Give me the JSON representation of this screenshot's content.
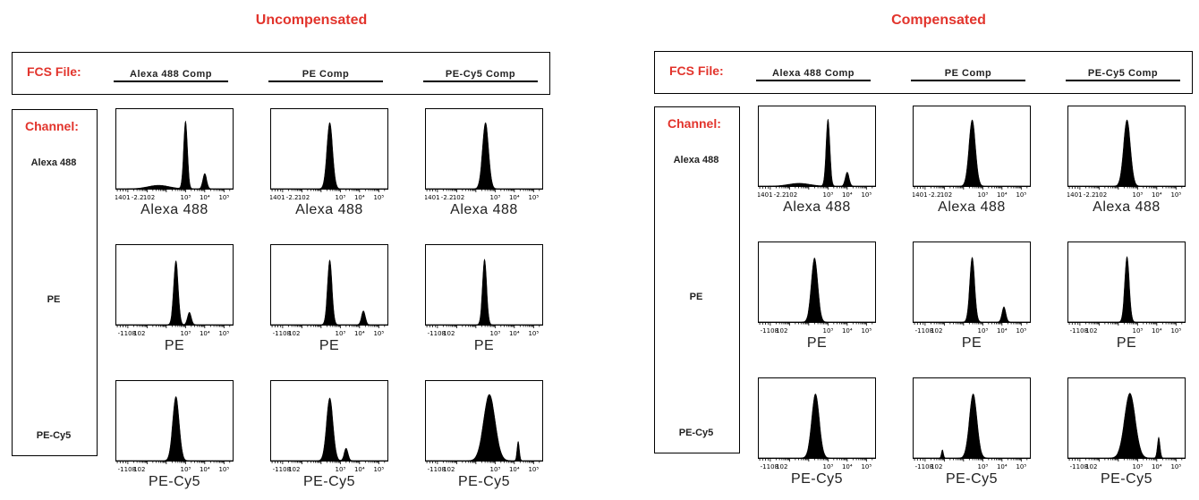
{
  "colors": {
    "accent": "#e2342c",
    "ink": "#000000"
  },
  "panels": [
    {
      "title": "Uncompensated",
      "file_label": "FCS File:",
      "channel_label": "Channel:",
      "files": [
        "Alexa 488 Comp",
        "PE Comp",
        "PE-Cy5 Comp"
      ],
      "channels": [
        "Alexa 488",
        "PE",
        "PE-Cy5"
      ]
    },
    {
      "title": "Compensated",
      "file_label": "FCS File:",
      "channel_label": "Channel:",
      "files": [
        "Alexa 488 Comp",
        "PE Comp",
        "PE-Cy5 Comp"
      ],
      "channels": [
        "Alexa 488",
        "PE",
        "PE-Cy5"
      ]
    }
  ],
  "tick_labels": {
    "Alexa 488": [
      "-1401",
      "-2.2",
      "102",
      "10³",
      "10⁴",
      "10⁵"
    ],
    "PE": [
      "-1108",
      "102",
      "10³",
      "10⁴",
      "10⁵"
    ],
    "PE-Cy5": [
      "-1108",
      "102",
      "10³",
      "10⁴",
      "10⁵"
    ]
  },
  "chart_data": {
    "type": "area",
    "x_scale": "log",
    "x_axis_ticks": [
      100,
      1000,
      10000,
      100000
    ],
    "note_on_values": "Each histogram is approximated as Gaussian peaks on log10(intensity); amp is relative event frequency (0-1).",
    "panels": [
      {
        "name": "Uncompensated",
        "rows": [
          {
            "channel": "Alexa 488",
            "cols": [
              {
                "file": "Alexa 488 Comp",
                "peaks": [
                  {
                    "log10": 1.6,
                    "sd": 0.55,
                    "amp": 0.05
                  },
                  {
                    "log10": 3.0,
                    "sd": 0.1,
                    "amp": 0.97
                  },
                  {
                    "log10": 4.0,
                    "sd": 0.1,
                    "amp": 0.22
                  }
                ]
              },
              {
                "file": "PE Comp",
                "peaks": [
                  {
                    "log10": 2.45,
                    "sd": 0.15,
                    "amp": 0.95
                  }
                ]
              },
              {
                "file": "PE-Cy5 Comp",
                "peaks": [
                  {
                    "log10": 2.5,
                    "sd": 0.16,
                    "amp": 0.95
                  }
                ]
              }
            ]
          },
          {
            "channel": "PE",
            "cols": [
              {
                "file": "Alexa 488 Comp",
                "peaks": [
                  {
                    "log10": 2.5,
                    "sd": 0.12,
                    "amp": 0.92
                  },
                  {
                    "log10": 3.2,
                    "sd": 0.1,
                    "amp": 0.18
                  }
                ]
              },
              {
                "file": "PE Comp",
                "peaks": [
                  {
                    "log10": 2.45,
                    "sd": 0.12,
                    "amp": 0.93
                  },
                  {
                    "log10": 4.2,
                    "sd": 0.1,
                    "amp": 0.2
                  }
                ]
              },
              {
                "file": "PE-Cy5 Comp",
                "peaks": [
                  {
                    "log10": 2.45,
                    "sd": 0.11,
                    "amp": 0.94
                  }
                ]
              }
            ]
          },
          {
            "channel": "PE-Cy5",
            "cols": [
              {
                "file": "Alexa 488 Comp",
                "peaks": [
                  {
                    "log10": 2.5,
                    "sd": 0.17,
                    "amp": 0.92
                  }
                ]
              },
              {
                "file": "PE Comp",
                "peaks": [
                  {
                    "log10": 2.45,
                    "sd": 0.17,
                    "amp": 0.9
                  },
                  {
                    "log10": 3.3,
                    "sd": 0.1,
                    "amp": 0.18
                  }
                ]
              },
              {
                "file": "PE-Cy5 Comp",
                "peaks": [
                  {
                    "log10": 2.7,
                    "sd": 0.3,
                    "amp": 0.95
                  },
                  {
                    "log10": 4.2,
                    "sd": 0.06,
                    "amp": 0.28
                  }
                ]
              }
            ]
          }
        ]
      },
      {
        "name": "Compensated",
        "rows": [
          {
            "channel": "Alexa 488",
            "cols": [
              {
                "file": "Alexa 488 Comp",
                "peaks": [
                  {
                    "log10": 1.5,
                    "sd": 0.55,
                    "amp": 0.04
                  },
                  {
                    "log10": 3.0,
                    "sd": 0.1,
                    "amp": 0.96
                  },
                  {
                    "log10": 4.0,
                    "sd": 0.1,
                    "amp": 0.2
                  }
                ]
              },
              {
                "file": "PE Comp",
                "peaks": [
                  {
                    "log10": 2.45,
                    "sd": 0.17,
                    "amp": 0.95
                  }
                ]
              },
              {
                "file": "PE-Cy5 Comp",
                "peaks": [
                  {
                    "log10": 2.45,
                    "sd": 0.18,
                    "amp": 0.95
                  }
                ]
              }
            ]
          },
          {
            "channel": "PE",
            "cols": [
              {
                "file": "Alexa 488 Comp",
                "peaks": [
                  {
                    "log10": 2.3,
                    "sd": 0.17,
                    "amp": 0.92
                  }
                ]
              },
              {
                "file": "PE Comp",
                "peaks": [
                  {
                    "log10": 2.45,
                    "sd": 0.13,
                    "amp": 0.93
                  },
                  {
                    "log10": 4.1,
                    "sd": 0.1,
                    "amp": 0.22
                  }
                ]
              },
              {
                "file": "PE-Cy5 Comp",
                "peaks": [
                  {
                    "log10": 2.45,
                    "sd": 0.12,
                    "amp": 0.94
                  }
                ]
              }
            ]
          },
          {
            "channel": "PE-Cy5",
            "cols": [
              {
                "file": "Alexa 488 Comp",
                "peaks": [
                  {
                    "log10": 2.35,
                    "sd": 0.2,
                    "amp": 0.92
                  }
                ]
              },
              {
                "file": "PE Comp",
                "peaks": [
                  {
                    "log10": 2.5,
                    "sd": 0.2,
                    "amp": 0.92
                  },
                  {
                    "log10": 0.9,
                    "sd": 0.05,
                    "amp": 0.12
                  }
                ]
              },
              {
                "file": "PE-Cy5 Comp",
                "peaks": [
                  {
                    "log10": 2.6,
                    "sd": 0.28,
                    "amp": 0.93
                  },
                  {
                    "log10": 4.1,
                    "sd": 0.07,
                    "amp": 0.3
                  }
                ]
              }
            ]
          }
        ]
      }
    ]
  }
}
